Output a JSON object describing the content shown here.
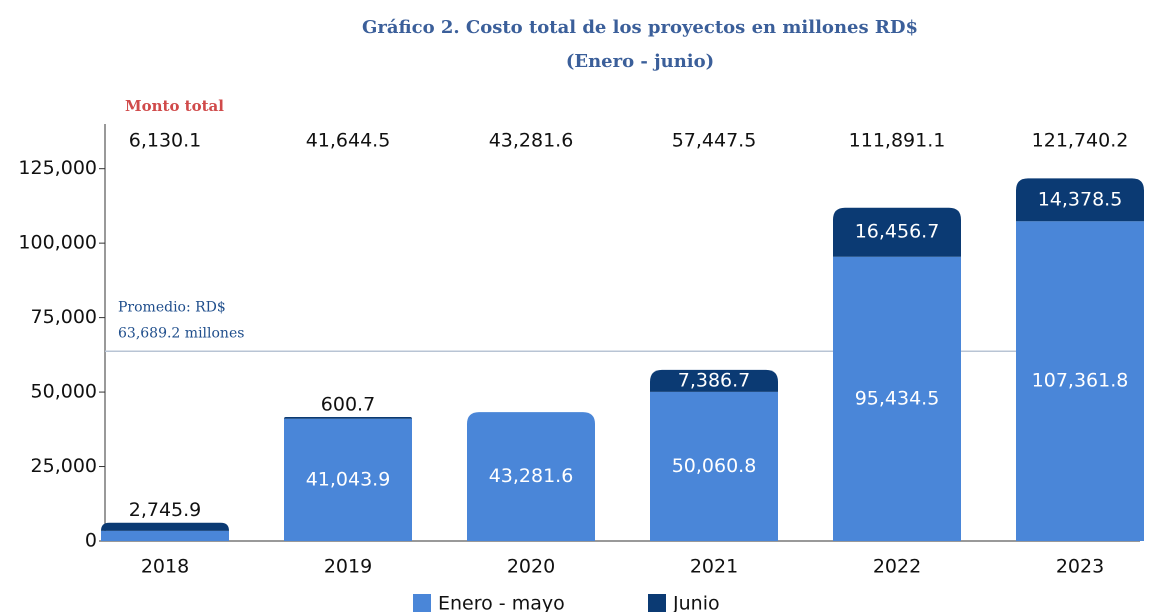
{
  "chart_data": {
    "type": "stacked_bar",
    "title": "Gráfico 2. Costo total de los proyectos en millones RD$",
    "subtitle": "(Enero - junio)",
    "categories": [
      "2018",
      "2019",
      "2020",
      "2021",
      "2022",
      "2023"
    ],
    "series": [
      {
        "name": "Enero - mayo",
        "color": "#4a86d8",
        "values": [
          3384.2,
          41043.9,
          43281.6,
          50060.8,
          95434.5,
          107361.8
        ],
        "value_labels": [
          null,
          "41,043.9",
          "43,281.6",
          "50,060.8",
          "95,434.5",
          "107,361.8"
        ]
      },
      {
        "name": "Junio",
        "color": "#0b3a73",
        "values": [
          2745.9,
          600.7,
          null,
          7386.7,
          16456.7,
          14378.5
        ],
        "value_labels": [
          "2,745.9",
          "600.7",
          null,
          "7,386.7",
          "16,456.7",
          "14,378.5"
        ]
      }
    ],
    "totals": {
      "label": "Monto total",
      "values": [
        6130.1,
        41644.5,
        43281.6,
        57447.5,
        111891.1,
        121740.2
      ],
      "value_labels": [
        "6,130.1",
        "41,644.5",
        "43,281.6",
        "57,447.5",
        "111,891.1",
        "121,740.2"
      ]
    },
    "average": {
      "value": 63689.2,
      "label_lines": [
        "Promedio: RD$",
        "63,689.2 millones"
      ]
    },
    "ylim": [
      0,
      140000
    ],
    "yticks": [
      0,
      {
        "value": 25000,
        "label": "25,000"
      },
      {
        "value": 50000,
        "label": "50,000"
      },
      {
        "value": 75000,
        "label": "75,000"
      },
      {
        "value": 100000,
        "label": "100,000"
      },
      {
        "value": 125000,
        "label": "125,000"
      }
    ],
    "legend": "bottom"
  }
}
